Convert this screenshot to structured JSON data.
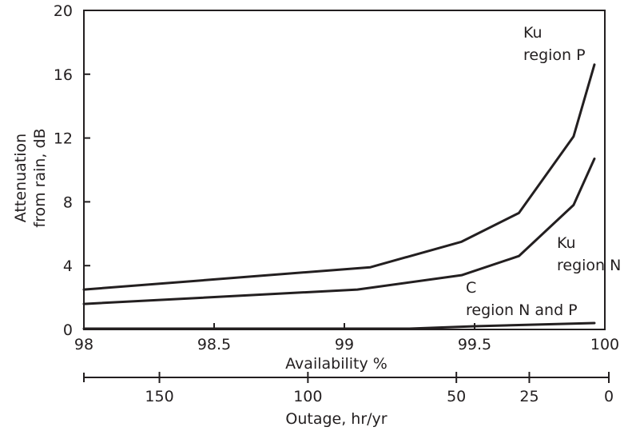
{
  "chart_data": {
    "type": "line",
    "title": "",
    "xlabel": "Availability %",
    "ylabel": [
      "Attenuation",
      "from rain, dB"
    ],
    "xlim": [
      98,
      100
    ],
    "ylim": [
      0,
      20
    ],
    "x_ticks": [
      "98",
      "98.5",
      "99",
      "99.5",
      "100"
    ],
    "y_ticks": [
      "0",
      "4",
      "8",
      "12",
      "16",
      "20"
    ],
    "secondary_axis": {
      "label": "Outage, hr/yr",
      "ticks": [
        {
          "label": "150",
          "availability": 98.29
        },
        {
          "label": "100",
          "availability": 98.86
        },
        {
          "label": "50",
          "availability": 99.43
        },
        {
          "label": "25",
          "availability": 99.71
        },
        {
          "label": "0",
          "availability": 100
        }
      ]
    },
    "grid": false,
    "series": [
      {
        "name": "Ku region P",
        "label_lines": [
          "Ku",
          "region P"
        ],
        "x": [
          98,
          99.1,
          99.45,
          99.67,
          99.88,
          99.96
        ],
        "y": [
          2.5,
          3.9,
          5.5,
          7.3,
          12.1,
          16.6
        ]
      },
      {
        "name": "Ku region N",
        "label_lines": [
          "Ku",
          "region N"
        ],
        "x": [
          98,
          99.05,
          99.45,
          99.67,
          99.88,
          99.96
        ],
        "y": [
          1.6,
          2.5,
          3.4,
          4.6,
          7.8,
          10.7
        ]
      },
      {
        "name": "C region N and P",
        "label_lines": [
          "C",
          "region N and P"
        ],
        "x": [
          98,
          99.25,
          99.5,
          99.96
        ],
        "y": [
          0.05,
          0.05,
          0.2,
          0.4
        ]
      }
    ]
  }
}
